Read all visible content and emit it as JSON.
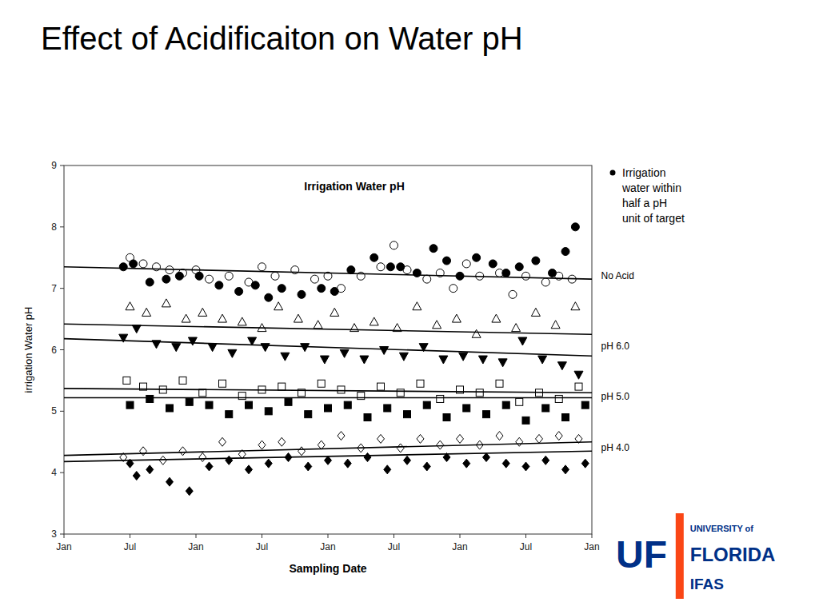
{
  "chart_data": {
    "type": "scatter",
    "title": "Effect of Acidificaiton on Water pH",
    "subtitle": "Irrigation Water pH",
    "x_label": "Sampling Date",
    "y_label": "irrigation Water pH",
    "xlim": [
      0,
      8
    ],
    "xticks": [
      {
        "value": 0,
        "label": "Jan"
      },
      {
        "value": 1,
        "label": "Jul"
      },
      {
        "value": 2,
        "label": "Jan"
      },
      {
        "value": 3,
        "label": "Jul"
      },
      {
        "value": 4,
        "label": "Jan"
      },
      {
        "value": 5,
        "label": "Jul"
      },
      {
        "value": 6,
        "label": "Jan"
      },
      {
        "value": 7,
        "label": "Jul"
      },
      {
        "value": 8,
        "label": "Jan"
      }
    ],
    "ylim": [
      3,
      9
    ],
    "yticks": [
      3,
      4,
      5,
      6,
      7,
      8,
      9
    ],
    "grid": false,
    "series": [
      {
        "type": "scatter",
        "marker": "circle-open",
        "color": "#000000",
        "x": [
          1.0,
          1.2,
          1.4,
          1.6,
          1.8,
          2.0,
          2.2,
          2.5,
          2.8,
          3.0,
          3.2,
          3.5,
          3.8,
          4.0,
          4.2,
          4.5,
          4.8,
          5.0,
          5.2,
          5.5,
          5.7,
          5.9,
          6.1,
          6.3,
          6.6,
          6.8,
          7.0,
          7.3,
          7.5,
          7.7
        ],
        "values": [
          7.5,
          7.4,
          7.35,
          7.3,
          7.25,
          7.3,
          7.15,
          7.2,
          7.1,
          7.35,
          7.2,
          7.3,
          7.15,
          7.2,
          7.0,
          7.2,
          7.35,
          7.7,
          7.3,
          7.15,
          7.25,
          7.0,
          7.4,
          7.2,
          7.25,
          6.9,
          7.2,
          7.1,
          7.2,
          7.15
        ]
      },
      {
        "type": "scatter",
        "marker": "circle",
        "color": "#000000",
        "x": [
          0.9,
          1.05,
          1.3,
          1.55,
          1.75,
          2.05,
          2.35,
          2.65,
          2.9,
          3.1,
          3.3,
          3.6,
          3.9,
          4.1,
          4.35,
          4.7,
          4.95,
          5.1,
          5.35,
          5.6,
          5.8,
          6.0,
          6.25,
          6.5,
          6.7,
          6.9,
          7.15,
          7.4,
          7.6,
          7.75
        ],
        "values": [
          7.35,
          7.4,
          7.1,
          7.15,
          7.2,
          7.2,
          7.05,
          6.95,
          7.05,
          6.85,
          7.0,
          6.9,
          7.0,
          6.95,
          7.3,
          7.5,
          7.35,
          7.35,
          7.25,
          7.65,
          7.45,
          7.2,
          7.5,
          7.4,
          7.25,
          7.35,
          7.45,
          7.25,
          7.6,
          8.0
        ]
      },
      {
        "type": "scatter",
        "marker": "triangle-up-open",
        "color": "#000000",
        "x": [
          1.0,
          1.25,
          1.55,
          1.85,
          2.1,
          2.4,
          2.7,
          3.0,
          3.25,
          3.55,
          3.85,
          4.1,
          4.4,
          4.7,
          5.05,
          5.35,
          5.65,
          5.95,
          6.25,
          6.55,
          6.85,
          7.15,
          7.45,
          7.75
        ],
        "values": [
          6.7,
          6.6,
          6.75,
          6.5,
          6.6,
          6.5,
          6.45,
          6.35,
          6.7,
          6.5,
          6.4,
          6.6,
          6.35,
          6.45,
          6.35,
          6.7,
          6.4,
          6.5,
          6.25,
          6.5,
          6.35,
          6.6,
          6.4,
          6.7
        ]
      },
      {
        "type": "scatter",
        "marker": "triangle-down",
        "color": "#000000",
        "x": [
          0.9,
          1.1,
          1.4,
          1.7,
          1.95,
          2.25,
          2.55,
          2.85,
          3.05,
          3.35,
          3.65,
          3.95,
          4.25,
          4.55,
          4.85,
          5.15,
          5.45,
          5.75,
          6.05,
          6.35,
          6.65,
          6.95,
          7.25,
          7.55,
          7.8
        ],
        "values": [
          6.2,
          6.35,
          6.1,
          6.05,
          6.15,
          6.05,
          5.95,
          6.15,
          6.05,
          5.9,
          6.05,
          5.85,
          5.95,
          5.85,
          6.0,
          5.9,
          6.05,
          5.85,
          5.9,
          5.85,
          5.8,
          6.15,
          5.85,
          5.75,
          5.6
        ]
      },
      {
        "type": "scatter",
        "marker": "square-open",
        "color": "#000000",
        "x": [
          0.95,
          1.2,
          1.5,
          1.8,
          2.1,
          2.4,
          2.7,
          3.0,
          3.3,
          3.6,
          3.9,
          4.2,
          4.5,
          4.8,
          5.1,
          5.4,
          5.7,
          6.0,
          6.3,
          6.6,
          6.9,
          7.2,
          7.5,
          7.8
        ],
        "values": [
          5.5,
          5.4,
          5.35,
          5.5,
          5.3,
          5.45,
          5.25,
          5.35,
          5.4,
          5.3,
          5.45,
          5.35,
          5.25,
          5.4,
          5.3,
          5.45,
          5.2,
          5.35,
          5.3,
          5.45,
          5.15,
          5.3,
          5.2,
          5.4
        ]
      },
      {
        "type": "scatter",
        "marker": "square",
        "color": "#000000",
        "x": [
          1.0,
          1.3,
          1.6,
          1.9,
          2.2,
          2.5,
          2.8,
          3.1,
          3.4,
          3.7,
          4.0,
          4.3,
          4.6,
          4.9,
          5.2,
          5.5,
          5.8,
          6.1,
          6.4,
          6.7,
          7.0,
          7.3,
          7.6,
          7.9
        ],
        "values": [
          5.1,
          5.2,
          5.05,
          5.15,
          5.1,
          4.95,
          5.1,
          5.0,
          5.15,
          4.95,
          5.05,
          5.1,
          4.9,
          5.05,
          4.95,
          5.1,
          4.9,
          5.05,
          4.95,
          5.1,
          4.85,
          5.05,
          4.9,
          5.1
        ]
      },
      {
        "type": "scatter",
        "marker": "diamond-open",
        "color": "#000000",
        "x": [
          0.9,
          1.2,
          1.5,
          1.8,
          2.1,
          2.4,
          2.7,
          3.0,
          3.3,
          3.6,
          3.9,
          4.2,
          4.5,
          4.8,
          5.1,
          5.4,
          5.7,
          6.0,
          6.3,
          6.6,
          6.9,
          7.2,
          7.5,
          7.8
        ],
        "values": [
          4.25,
          4.35,
          4.2,
          4.35,
          4.25,
          4.5,
          4.3,
          4.45,
          4.5,
          4.35,
          4.45,
          4.6,
          4.4,
          4.55,
          4.4,
          4.55,
          4.45,
          4.55,
          4.45,
          4.6,
          4.5,
          4.55,
          4.6,
          4.55
        ]
      },
      {
        "type": "scatter",
        "marker": "diamond",
        "color": "#000000",
        "x": [
          1.0,
          1.1,
          1.3,
          1.6,
          1.9,
          2.2,
          2.5,
          2.8,
          3.1,
          3.4,
          3.7,
          4.0,
          4.3,
          4.6,
          4.9,
          5.2,
          5.5,
          5.8,
          6.1,
          6.4,
          6.7,
          7.0,
          7.3,
          7.6,
          7.9
        ],
        "values": [
          4.15,
          3.95,
          4.05,
          3.85,
          3.7,
          4.1,
          4.2,
          4.05,
          4.15,
          4.25,
          4.1,
          4.2,
          4.15,
          4.25,
          4.05,
          4.2,
          4.1,
          4.25,
          4.15,
          4.25,
          4.15,
          4.1,
          4.2,
          4.05,
          4.15
        ]
      },
      {
        "type": "line",
        "line_style": "solid",
        "color": "#000000",
        "x": [
          0,
          8
        ],
        "values": [
          7.35,
          7.15
        ]
      },
      {
        "type": "line",
        "line_style": "solid",
        "color": "#000000",
        "x": [
          0,
          8
        ],
        "values": [
          6.42,
          6.25
        ]
      },
      {
        "type": "line",
        "line_style": "solid",
        "color": "#000000",
        "x": [
          0,
          8
        ],
        "values": [
          6.18,
          5.9
        ]
      },
      {
        "type": "line",
        "line_style": "solid",
        "color": "#000000",
        "x": [
          0,
          8
        ],
        "values": [
          5.37,
          5.3
        ]
      },
      {
        "type": "line",
        "line_style": "solid",
        "color": "#000000",
        "x": [
          0,
          8
        ],
        "values": [
          5.22,
          5.22
        ]
      },
      {
        "type": "line",
        "line_style": "solid",
        "color": "#000000",
        "x": [
          0,
          8
        ],
        "values": [
          4.28,
          4.5
        ]
      },
      {
        "type": "line",
        "line_style": "solid",
        "color": "#000000",
        "x": [
          0,
          8
        ],
        "values": [
          4.18,
          4.35
        ]
      }
    ],
    "annotations": [
      {
        "text": "No Acid",
        "x": 8.08,
        "y": 7.2
      },
      {
        "text": "pH 6.0",
        "x": 8.08,
        "y": 6.06
      },
      {
        "text": "pH 5.0",
        "x": 8.08,
        "y": 5.24
      },
      {
        "text": "pH 4.0",
        "x": 8.08,
        "y": 4.4
      },
      {
        "text": "Irrigation\nwater within\nhalf a pH\nunit of target"
      }
    ],
    "logo": {
      "texts": [
        "UF",
        "UNIVERSITY of",
        "FLORIDA",
        "IFAS"
      ],
      "color": "#003087",
      "accent_color": "#FA4616"
    }
  }
}
